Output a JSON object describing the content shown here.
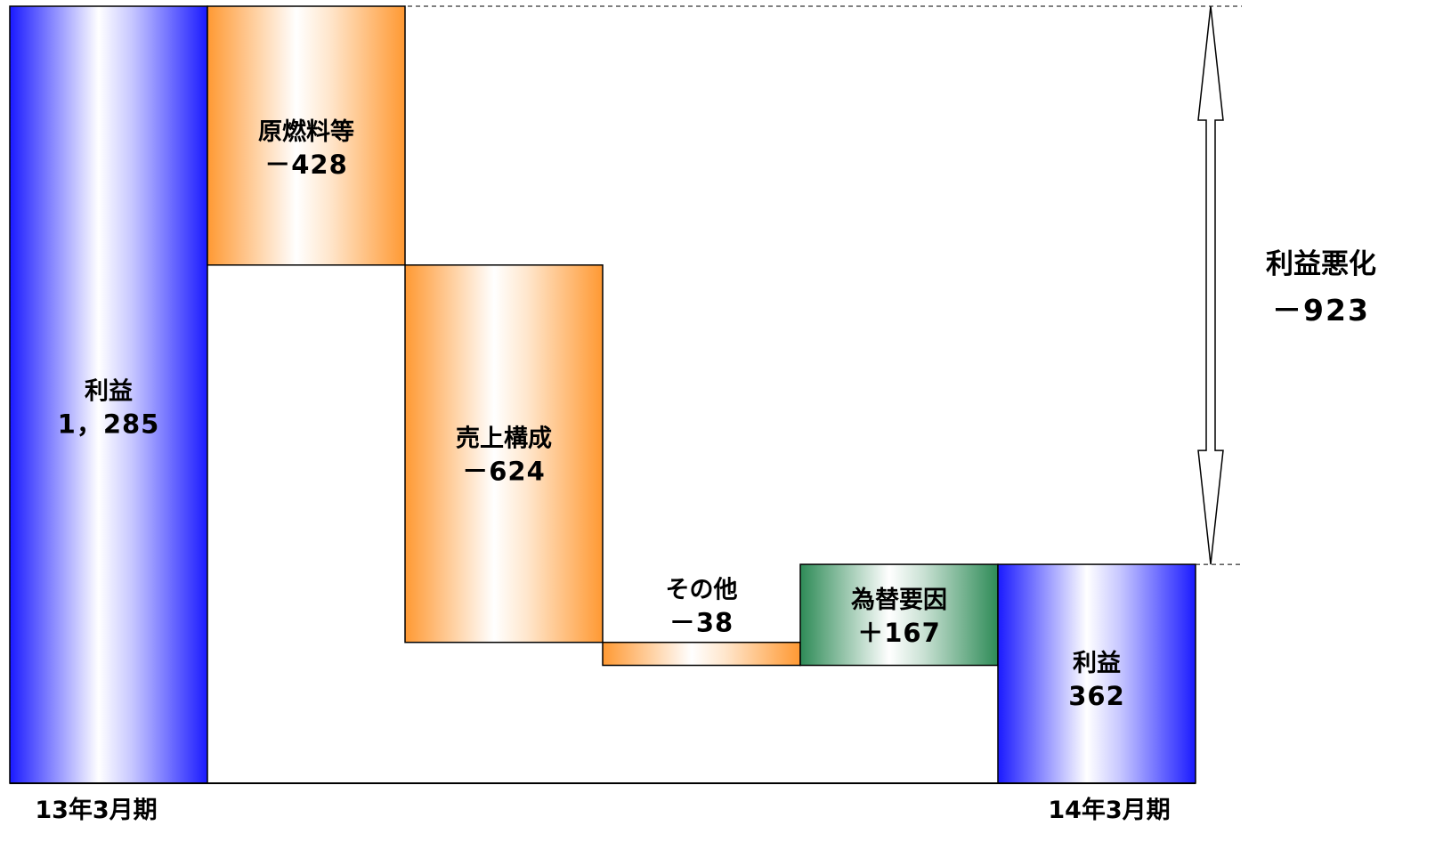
{
  "chart_data": {
    "type": "waterfall",
    "title": "",
    "categories": [
      "13年3月期",
      "",
      "",
      "",
      "",
      "14年3月期"
    ],
    "steps": [
      {
        "kind": "total",
        "name": "利益",
        "value_label": "1，285",
        "value": 1285,
        "color": "#1a1aff"
      },
      {
        "kind": "delta",
        "name": "原燃料等",
        "value_label": "－428",
        "value": -428,
        "color": "#ff9933"
      },
      {
        "kind": "delta",
        "name": "売上構成",
        "value_label": "－624",
        "value": -624,
        "color": "#ff9933"
      },
      {
        "kind": "delta",
        "name": "その他",
        "value_label": "－38",
        "value": -38,
        "color": "#ff9933"
      },
      {
        "kind": "delta",
        "name": "為替要因",
        "value_label": "＋167",
        "value": 167,
        "color": "#2e8b57"
      },
      {
        "kind": "total",
        "name": "利益",
        "value_label": "362",
        "value": 362,
        "color": "#1a1aff"
      }
    ],
    "change_annotation": {
      "label": "利益悪化",
      "value_label": "－923",
      "value": -923
    },
    "ylim": [
      0,
      1285
    ],
    "grid": false,
    "legend": "none"
  }
}
